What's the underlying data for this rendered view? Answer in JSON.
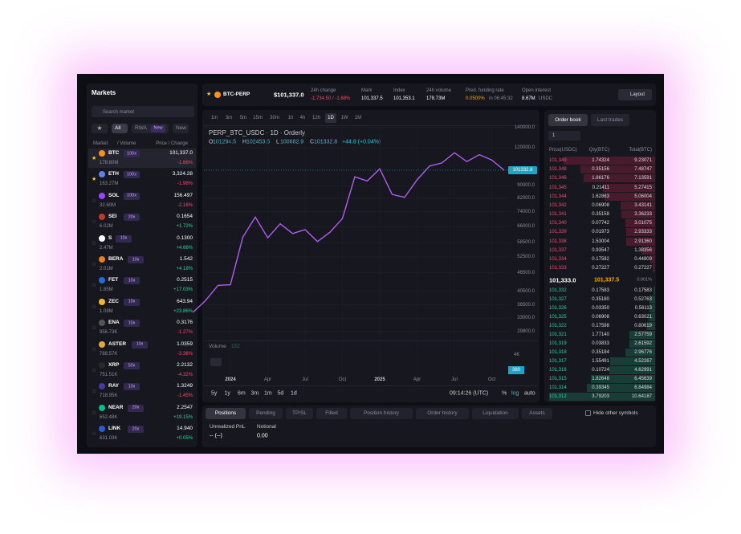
{
  "sidebar": {
    "title": "Markets",
    "search": "Search market",
    "tabs": [
      {
        "label": "All"
      },
      {
        "label": "RWA",
        "badge": "New"
      },
      {
        "label": "New"
      }
    ],
    "columns": [
      "Market",
      "/ Volume",
      "Price / Change"
    ],
    "markets": [
      {
        "symbol": "BTC",
        "leverage": "100x",
        "volume": "178.80M",
        "price": "101,337.0",
        "change": "-1.66%"
      },
      {
        "symbol": "ETH",
        "leverage": "100x",
        "volume": "163.27M",
        "price": "3,324.28",
        "change": "-1.98%"
      },
      {
        "symbol": "SOL",
        "leverage": "100x",
        "volume": "32.60M",
        "price": "156.497",
        "change": "-2.16%"
      },
      {
        "symbol": "SEI",
        "leverage": "20x",
        "volume": "6.02M",
        "price": "0.1654",
        "change": "+1.72%"
      },
      {
        "symbol": "S",
        "leverage": "10x",
        "volume": "2.47M",
        "price": "0.1300",
        "change": "+4.66%"
      },
      {
        "symbol": "BERA",
        "leverage": "10x",
        "volume": "2.01M",
        "price": "1.542",
        "change": "+4.18%"
      },
      {
        "symbol": "FET",
        "leverage": "10x",
        "volume": "1.85M",
        "price": "0.2515",
        "change": "+17.03%"
      },
      {
        "symbol": "ZEC",
        "leverage": "10x",
        "volume": "1.08M",
        "price": "643.94",
        "change": "+23.86%"
      },
      {
        "symbol": "ENA",
        "leverage": "10x",
        "volume": "956.73K",
        "price": "0.3176",
        "change": "-1.27%"
      },
      {
        "symbol": "ASTER",
        "leverage": "10x",
        "volume": "788.57K",
        "price": "1.0359",
        "change": "-3.36%"
      },
      {
        "symbol": "XRP",
        "leverage": "50x",
        "volume": "751.51K",
        "price": "2.2132",
        "change": "-4.32%"
      },
      {
        "symbol": "RAY",
        "leverage": "10x",
        "volume": "718.95K",
        "price": "1.3249",
        "change": "-1.45%"
      },
      {
        "symbol": "NEAR",
        "leverage": "20x",
        "volume": "652.48K",
        "price": "2.2547",
        "change": "+19.15%"
      },
      {
        "symbol": "LINK",
        "leverage": "20x",
        "volume": "631.03K",
        "price": "14.940",
        "change": "+0.05%"
      }
    ]
  },
  "header": {
    "symbol": "BTC-PERP",
    "price": "$101,337.0",
    "stats": [
      {
        "label": "24h change",
        "value": "-1,734.50 / -1.68%"
      },
      {
        "label": "Mark",
        "value": "101,337.5"
      },
      {
        "label": "Index",
        "value": "101,353.1"
      },
      {
        "label": "24h volume",
        "value": "178.73M"
      },
      {
        "label": "Pred. funding rate",
        "value": "0.0500%",
        "note": "in 06:45:32"
      },
      {
        "label": "Open interest",
        "value": "8.67M",
        "note": "USDC"
      }
    ],
    "layout_button": "Layout"
  },
  "chart": {
    "timeframes": [
      "1m",
      "3m",
      "5m",
      "15m",
      "30m",
      "1h",
      "4h",
      "12h",
      "1D",
      "1W",
      "1M"
    ],
    "active_timeframe": "1D",
    "title": "PERP_BTC_USDC · 1D · Orderly",
    "ohlc": [
      {
        "key": "O",
        "value": "101294.5"
      },
      {
        "key": "H",
        "value": "102453.5"
      },
      {
        "key": "L",
        "value": "100682.9"
      },
      {
        "key": "C",
        "value": "101332.8"
      }
    ],
    "ohlc_change": "+44.8 (+0.04%)",
    "last_price_label": "101332.8",
    "log_scale": true,
    "ylim": [
      28540,
      147800
    ],
    "yticks": [
      {
        "value": 140000,
        "label": "140000.0"
      },
      {
        "value": 120000,
        "label": "120000.0"
      },
      {
        "value": 90000,
        "label": "90000.0"
      },
      {
        "value": 82000,
        "label": "82000.0"
      },
      {
        "value": 74000,
        "label": "74000.0"
      },
      {
        "value": 66000,
        "label": "66000.0"
      },
      {
        "value": 58500,
        "label": "58500.0"
      },
      {
        "value": 52500,
        "label": "52500.0"
      },
      {
        "value": 46500,
        "label": "46500.0"
      },
      {
        "value": 40500,
        "label": "40500.0"
      },
      {
        "value": 36500,
        "label": "36500.0"
      },
      {
        "value": 33000,
        "label": "33000.0"
      },
      {
        "value": 29800,
        "label": "29800.0"
      }
    ],
    "x": [
      "2023-10",
      "2023-11",
      "2023-12",
      "2024-01",
      "2024-02",
      "2024-03",
      "2024-04",
      "2024-05",
      "2024-06",
      "2024-07",
      "2024-08",
      "2024-09",
      "2024-10",
      "2024-11",
      "2024-12",
      "2025-01",
      "2025-02",
      "2025-03",
      "2025-04",
      "2025-05",
      "2025-06",
      "2025-07",
      "2025-08",
      "2025-09",
      "2025-10",
      "2025-11"
    ],
    "close": [
      34500,
      37700,
      42300,
      42500,
      61000,
      71000,
      60700,
      67500,
      62700,
      64600,
      59000,
      63300,
      70200,
      96400,
      93400,
      102400,
      84300,
      82500,
      94200,
      104600,
      107100,
      115700,
      108200,
      114000,
      109500,
      101332.8
    ],
    "line_color": "#b15cf0",
    "xlabels": [
      "2024",
      "Apr",
      "Jul",
      "Oct",
      "2025",
      "Apr",
      "Jul",
      "Oct"
    ],
    "volume_label": "Volume",
    "volume_value": "152",
    "volume_ticks": [
      "4K",
      "380"
    ],
    "ranges": [
      "5y",
      "1y",
      "6m",
      "3m",
      "1m",
      "5d",
      "1d"
    ],
    "clock": "09:14:26 (UTC)",
    "scale_options": [
      "%",
      "log",
      "auto"
    ]
  },
  "orderbook": {
    "tabs": [
      "Order book",
      "Last trades"
    ],
    "precision": "1",
    "headers": [
      "Price(USDC)",
      "Qty(BTC)",
      "Total(BTC)"
    ],
    "asks": [
      [
        "101,349",
        "1.74324",
        "9.23071"
      ],
      [
        "101,348",
        "0.35156",
        "7.48747"
      ],
      [
        "101,346",
        "1.86176",
        "7.13591"
      ],
      [
        "101,345",
        "0.21411",
        "5.27415"
      ],
      [
        "101,344",
        "1.62863",
        "5.06004"
      ],
      [
        "101,342",
        "0.06908",
        "3.43141"
      ],
      [
        "101,341",
        "0.35158",
        "3.36233"
      ],
      [
        "101,340",
        "0.07742",
        "3.01075"
      ],
      [
        "101,339",
        "0.01973",
        "2.93333"
      ],
      [
        "101,338",
        "1.53004",
        "2.91360"
      ],
      [
        "101,337",
        "0.93547",
        "1.38356"
      ],
      [
        "101,334",
        "0.17582",
        "0.44809"
      ],
      [
        "101,333",
        "0.27227",
        "0.27227"
      ]
    ],
    "mid": {
      "price": "101,333.0",
      "mark": "101,337.5",
      "spread": "0.001%"
    },
    "bids": [
      [
        "101,332",
        "0.17583",
        "0.17583"
      ],
      [
        "101,327",
        "0.35180",
        "0.52763"
      ],
      [
        "101,326",
        "0.03350",
        "0.56113"
      ],
      [
        "101,325",
        "0.06908",
        "0.63021"
      ],
      [
        "101,322",
        "0.17598",
        "0.80619"
      ],
      [
        "101,321",
        "1.77140",
        "2.57759"
      ],
      [
        "101,319",
        "0.03833",
        "2.61592"
      ],
      [
        "101,318",
        "0.35184",
        "2.96776"
      ],
      [
        "101,317",
        "1.55491",
        "4.52267"
      ],
      [
        "101,316",
        "0.10724",
        "4.62991"
      ],
      [
        "101,315",
        "1.82648",
        "6.45639"
      ],
      [
        "101,314",
        "0.39345",
        "6.84984"
      ],
      [
        "101,312",
        "3.79203",
        "10.64187"
      ]
    ]
  },
  "positions": {
    "tabs": [
      "Positions",
      "Pending",
      "TP/SL",
      "Filled",
      "Position history",
      "Order history",
      "Liquidation",
      "Assets"
    ],
    "hide_label": "Hide other symbols",
    "fields": [
      {
        "label": "Unrealized PnL",
        "value": "-- (--)"
      },
      {
        "label": "Notional",
        "value": "0.00"
      }
    ]
  }
}
